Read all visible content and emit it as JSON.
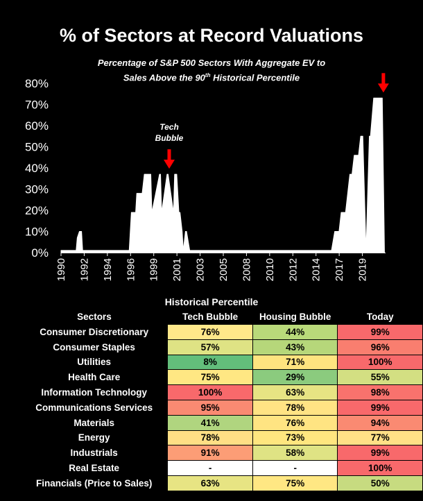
{
  "header": {
    "title": "% of Sectors at Record Valuations",
    "subtitle_line1": "Percentage of S&P 500 Sectors With Aggregate EV to",
    "subtitle_line2_pre": "Sales Above the 90",
    "subtitle_sup": "th",
    "subtitle_line2_post": " Historical Percentile"
  },
  "chart_data": {
    "type": "area",
    "title": "% of Sectors at Record Valuations",
    "ylim": [
      0,
      80
    ],
    "y_ticks": [
      "0%",
      "10%",
      "20%",
      "30%",
      "40%",
      "50%",
      "60%",
      "70%",
      "80%"
    ],
    "x_ticks": [
      "1990",
      "1992",
      "1994",
      "1996",
      "1999",
      "2001",
      "2003",
      "2005",
      "2008",
      "2010",
      "2012",
      "2014",
      "2017",
      "2019"
    ],
    "x_range": [
      1990.0,
      2020.0
    ],
    "series": [
      {
        "x": [
          1990.0,
          1991.4,
          1991.5,
          1991.7,
          1991.9,
          1992.0,
          1996.3,
          1996.5,
          1996.9,
          1997.0,
          1997.5,
          1997.7,
          1998.3,
          1998.4,
          1999.1,
          1999.2,
          1999.3,
          1999.8,
          1999.9,
          2000.4,
          2000.5,
          2000.7,
          2000.9,
          2001.0,
          2001.2,
          2001.3,
          2001.5,
          2001.6,
          2001.9,
          2002.0,
          2002.3,
          2002.6,
          2015.0,
          2015.3,
          2015.7,
          2015.9,
          2016.3,
          2016.5,
          2016.7,
          2016.9,
          2017.1,
          2017.5,
          2017.7,
          2017.9,
          2018.2,
          2018.5,
          2018.6,
          2018.9,
          2019.1,
          2019.2,
          2019.5,
          2019.7,
          2019.9
        ],
        "y": [
          1,
          1,
          7,
          10,
          10,
          1,
          1,
          19,
          19,
          28,
          28,
          37,
          37,
          19,
          37,
          37,
          19,
          37,
          37,
          19,
          37,
          37,
          19,
          19,
          10,
          1,
          10,
          10,
          1,
          1,
          1,
          1,
          1,
          10,
          10,
          19,
          19,
          28,
          37,
          37,
          46,
          46,
          55,
          55,
          1,
          55,
          55,
          73,
          73,
          73,
          73,
          73,
          1
        ],
        "fill": "#ffffff"
      }
    ],
    "annotations": [
      {
        "text_line1": "Tech",
        "text_line2": "Bubble",
        "x": 2000.0,
        "y": 37,
        "arrow": true
      },
      {
        "text_line1": "",
        "text_line2": "",
        "x": 2019.8,
        "y": 73,
        "arrow": true
      }
    ],
    "arrow_color": "#ff0000"
  },
  "table": {
    "title": "Historical Percentile",
    "columns": [
      "Sectors",
      "Tech Bubble",
      "Housing Bubble",
      "Today"
    ],
    "rows": [
      {
        "sector": "Consumer Discretionary",
        "tech": "76%",
        "housing": "44%",
        "today": "99%",
        "colors": [
          "#ffe88a",
          "#b9d97a",
          "#f8696b"
        ]
      },
      {
        "sector": "Consumer Staples",
        "tech": "57%",
        "housing": "43%",
        "today": "96%",
        "colors": [
          "#dfe384",
          "#b6d77a",
          "#f97e6f"
        ]
      },
      {
        "sector": "Utilities",
        "tech": "8%",
        "housing": "71%",
        "today": "100%",
        "colors": [
          "#63be7b",
          "#fee47f",
          "#f8696b"
        ]
      },
      {
        "sector": "Health Care",
        "tech": "75%",
        "housing": "29%",
        "today": "55%",
        "colors": [
          "#ffe783",
          "#8bcb7e",
          "#d3df82"
        ]
      },
      {
        "sector": "Information Technology",
        "tech": "100%",
        "housing": "63%",
        "today": "98%",
        "colors": [
          "#f8696b",
          "#e7e483",
          "#f8726d"
        ]
      },
      {
        "sector": "Communications Services",
        "tech": "95%",
        "housing": "78%",
        "today": "99%",
        "colors": [
          "#fa8a72",
          "#ffe384",
          "#f8696b"
        ]
      },
      {
        "sector": "Materials",
        "tech": "41%",
        "housing": "76%",
        "today": "94%",
        "colors": [
          "#b0d57f",
          "#ffe482",
          "#fa8a72"
        ]
      },
      {
        "sector": "Energy",
        "tech": "78%",
        "housing": "73%",
        "today": "77%",
        "colors": [
          "#ffdf85",
          "#ffe67f",
          "#ffe086"
        ]
      },
      {
        "sector": "Industrials",
        "tech": "91%",
        "housing": "58%",
        "today": "99%",
        "colors": [
          "#fc9d76",
          "#dfe384",
          "#f8696b"
        ]
      },
      {
        "sector": "Real Estate",
        "tech": "-",
        "housing": "-",
        "today": "100%",
        "colors": [
          "#ffffff",
          "#ffffff",
          "#f8696b"
        ]
      },
      {
        "sector": "Financials (Price to Sales)",
        "tech": "63%",
        "housing": "75%",
        "today": "50%",
        "colors": [
          "#e7e483",
          "#ffe783",
          "#c7db80"
        ]
      }
    ]
  }
}
